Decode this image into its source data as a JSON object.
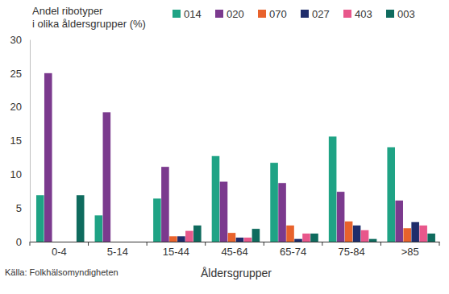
{
  "chart_data": {
    "type": "bar",
    "y_label": "Andel ribotyper\ni olika åldersgrupper (%)",
    "x_label": "Åldersgrupper",
    "source": "Källa: Folkhälsomyndigheten",
    "categories": [
      "0-4",
      "5-14",
      "15-44",
      "45-64",
      "65-74",
      "75-84",
      ">85"
    ],
    "series": [
      {
        "name": "014",
        "color": "#1fa385",
        "values": [
          6.9,
          3.9,
          6.4,
          12.7,
          11.7,
          15.6,
          14.0
        ]
      },
      {
        "name": "020",
        "color": "#7b3a8e",
        "values": [
          25.0,
          19.2,
          11.1,
          8.9,
          8.7,
          7.4,
          6.1
        ]
      },
      {
        "name": "070",
        "color": "#e8622c",
        "values": [
          0,
          0,
          0.8,
          1.3,
          2.4,
          3.0,
          2.0
        ]
      },
      {
        "name": "027",
        "color": "#1f2d6b",
        "values": [
          0,
          0,
          0.8,
          0.6,
          0.4,
          2.4,
          2.9
        ]
      },
      {
        "name": "403",
        "color": "#e8578b",
        "values": [
          0,
          0,
          1.6,
          0.6,
          1.2,
          1.7,
          2.4
        ]
      },
      {
        "name": "003",
        "color": "#0f6b5e",
        "values": [
          6.9,
          0,
          2.4,
          1.9,
          1.2,
          0.4,
          1.2
        ]
      }
    ],
    "ylim": [
      0,
      30
    ],
    "yticks": [
      0,
      5,
      10,
      15,
      20,
      25,
      30
    ],
    "grid": false,
    "legend": "top"
  }
}
